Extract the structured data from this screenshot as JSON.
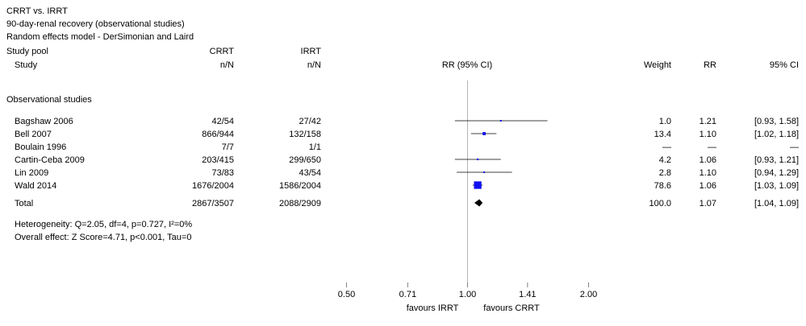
{
  "title_block": {
    "line1": "CRRT vs. IRRT",
    "line2": "90-day-renal recovery (observational studies)",
    "line3": "Random effects model - DerSimonian and Laird"
  },
  "column_headers": {
    "study_pool": "Study pool",
    "study": "Study",
    "crrt_top": "CRRT",
    "irrt_top": "IRRT",
    "crrt_sub": "n/N",
    "irrt_sub": "n/N",
    "plot": "RR (95% CI)",
    "weight": "Weight",
    "rr": "RR",
    "ci": "95% CI"
  },
  "group_label": "Observational studies",
  "footnotes": {
    "heterogeneity": "Heterogeneity: Q=2.05, df=4, p=0.727, I²=0%",
    "overall_effect": "Overall effect: Z Score=4.71, p<0.001, Tau=0"
  },
  "axis": {
    "left_label": "favours IRRT",
    "right_label": "favours CRRT"
  },
  "chart_data": {
    "type": "forest",
    "effect_measure": "RR",
    "x_scale": "log",
    "x_range": [
      0.5,
      2.0
    ],
    "x_ticks": [
      0.5,
      0.71,
      1.0,
      1.41,
      2.0
    ],
    "x_tick_labels": [
      "0.50",
      "0.71",
      "1.00",
      "1.41",
      "2.00"
    ],
    "reference_line": 1.0,
    "marker_color": "#1010ee",
    "diamond_color": "#000000",
    "studies": [
      {
        "label": "Bagshaw 2006",
        "crrt_nN": "42/54",
        "irrt_nN": "27/42",
        "rr": 1.21,
        "ci_low": 0.93,
        "ci_high": 1.58,
        "weight": 1.0,
        "weight_label": "1.0",
        "rr_label": "1.21",
        "ci_label": "[0.93, 1.58]"
      },
      {
        "label": "Bell 2007",
        "crrt_nN": "866/944",
        "irrt_nN": "132/158",
        "rr": 1.1,
        "ci_low": 1.02,
        "ci_high": 1.18,
        "weight": 13.4,
        "weight_label": "13.4",
        "rr_label": "1.10",
        "ci_label": "[1.02, 1.18]"
      },
      {
        "label": "Boulain 1996",
        "crrt_nN": "7/7",
        "irrt_nN": "1/1",
        "rr": null,
        "ci_low": null,
        "ci_high": null,
        "weight": null,
        "weight_label": "—",
        "rr_label": "—",
        "ci_label": "—"
      },
      {
        "label": "Cartin-Ceba 2009",
        "crrt_nN": "203/415",
        "irrt_nN": "299/650",
        "rr": 1.06,
        "ci_low": 0.93,
        "ci_high": 1.21,
        "weight": 4.2,
        "weight_label": "4.2",
        "rr_label": "1.06",
        "ci_label": "[0.93, 1.21]"
      },
      {
        "label": "Lin 2009",
        "crrt_nN": "73/83",
        "irrt_nN": "43/54",
        "rr": 1.1,
        "ci_low": 0.94,
        "ci_high": 1.29,
        "weight": 2.8,
        "weight_label": "2.8",
        "rr_label": "1.10",
        "ci_label": "[0.94, 1.29]"
      },
      {
        "label": "Wald 2014",
        "crrt_nN": "1676/2004",
        "irrt_nN": "1586/2004",
        "rr": 1.06,
        "ci_low": 1.03,
        "ci_high": 1.09,
        "weight": 78.6,
        "weight_label": "78.6",
        "rr_label": "1.06",
        "ci_label": "[1.03, 1.09]"
      }
    ],
    "total": {
      "label": "Total",
      "crrt_nN": "2867/3507",
      "irrt_nN": "2088/2909",
      "rr": 1.07,
      "ci_low": 1.04,
      "ci_high": 1.09,
      "weight": 100.0,
      "weight_label": "100.0",
      "rr_label": "1.07",
      "ci_label": "[1.04, 1.09]"
    }
  }
}
